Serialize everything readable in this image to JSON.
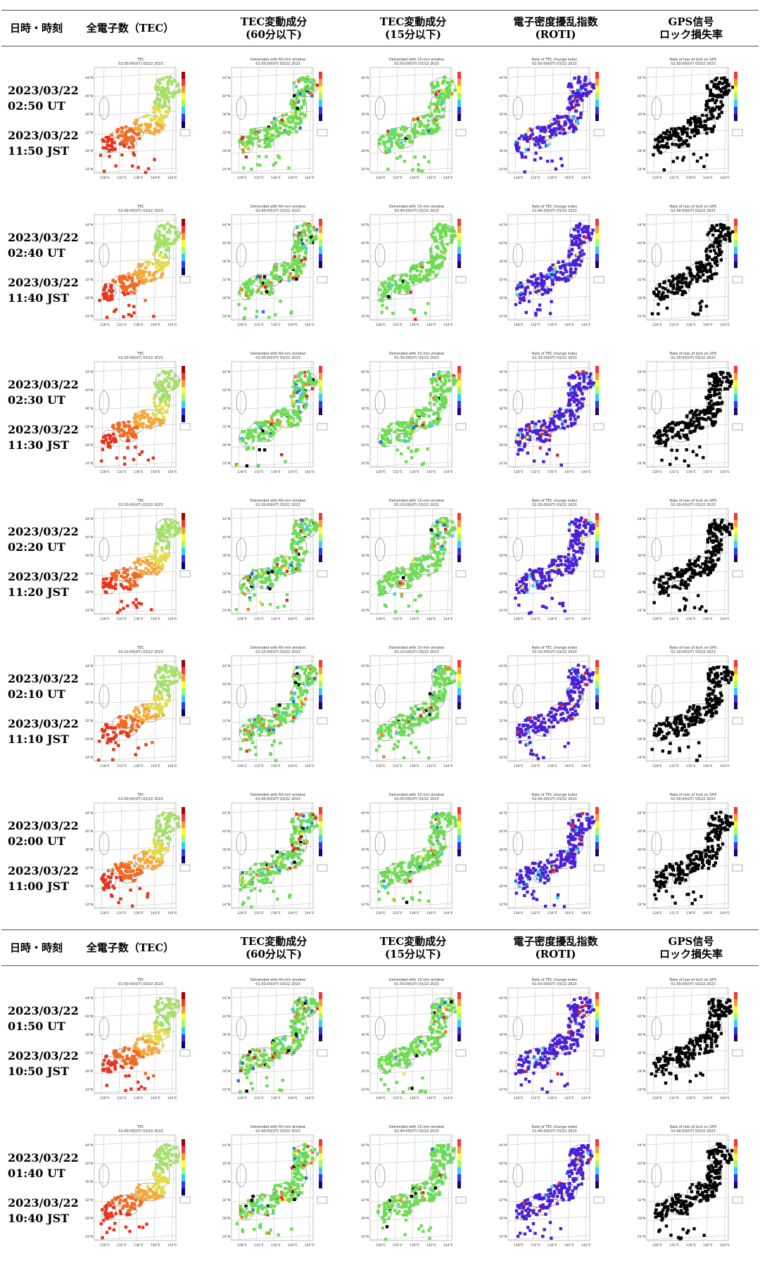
{
  "header": {
    "col_datetime": "日時・時刻",
    "col_tec": "全電子数（TEC）",
    "col_dtec60_l1": "TEC変動成分",
    "col_dtec60_l2": "(60分以下)",
    "col_dtec15_l1": "TEC変動成分",
    "col_dtec15_l2": "(15分以下)",
    "col_roti_l1": "電子密度擾乱指数",
    "col_roti_l2": "(ROTI)",
    "col_lol_l1": "GPS信号",
    "col_lol_l2": "ロック損失率"
  },
  "rows": [
    {
      "ut_date": "2023/03/22",
      "ut_time": "02:50 UT",
      "jst_date": "2023/03/22",
      "jst_time": "11:50 JST"
    },
    {
      "ut_date": "2023/03/22",
      "ut_time": "02:40 UT",
      "jst_date": "2023/03/22",
      "jst_time": "11:40 JST"
    },
    {
      "ut_date": "2023/03/22",
      "ut_time": "02:30 UT",
      "jst_date": "2023/03/22",
      "jst_time": "11:30 JST"
    },
    {
      "ut_date": "2023/03/22",
      "ut_time": "02:20 UT",
      "jst_date": "2023/03/22",
      "jst_time": "11:20 JST"
    },
    {
      "ut_date": "2023/03/22",
      "ut_time": "02:10 UT",
      "jst_date": "2023/03/22",
      "jst_time": "11:10 JST"
    },
    {
      "ut_date": "2023/03/22",
      "ut_time": "02:00 UT",
      "jst_date": "2023/03/22",
      "jst_time": "11:00 JST"
    },
    {
      "ut_date": "2023/03/22",
      "ut_time": "01:50 UT",
      "jst_date": "2023/03/22",
      "jst_time": "10:50 JST"
    },
    {
      "ut_date": "2023/03/22",
      "ut_time": "01:40 UT",
      "jst_date": "2023/03/22",
      "jst_time": "10:40 JST"
    }
  ],
  "panel_titles": {
    "tec": "TEC",
    "dtec60": "Detrended with 60-min window",
    "dtec15": "Detrended with 15-min window",
    "roti": "Rate of TEC change index",
    "lol": "Rate of loss of lock on GPS"
  },
  "panel_subtitles": [
    "02:50:00(UT) 03/22 2023",
    "02:40:00(UT) 03/22 2023",
    "02:30:00(UT) 03/22 2023",
    "02:20:00(UT) 03/22 2023",
    "02:10:00(UT) 03/22 2023",
    "02:00:00(UT) 03/22 2023",
    "01:50:00(UT) 03/22 2023",
    "01:40:00(UT) 03/22 2023"
  ],
  "colors": {
    "tec_ramp": [
      "#e8321c",
      "#f06a22",
      "#f5a83a",
      "#e2dd48",
      "#a6e06a"
    ],
    "dtec_base": "#6cdc52",
    "dtec_accents": [
      "#f5e33c",
      "#f07c24",
      "#e02a1e",
      "#2a6ee0",
      "#3ccfe8",
      "#000000"
    ],
    "roti_base": "#4a1ed8",
    "roti_accents": [
      "#2a6ee0",
      "#3ccfe8",
      "#e02a1e",
      "#f5e33c"
    ],
    "lol_base": "#000000",
    "rule": "#555555"
  }
}
